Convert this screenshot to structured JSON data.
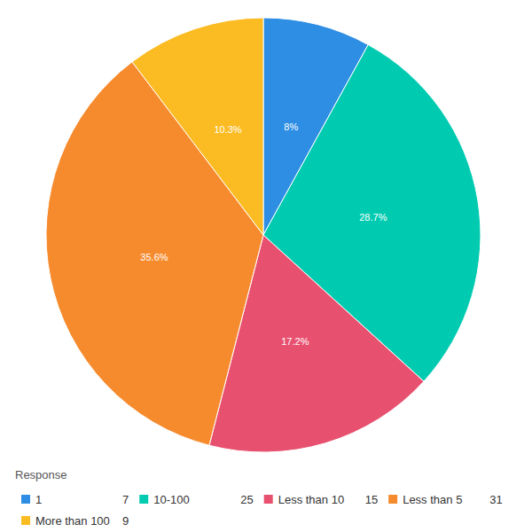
{
  "chart_data": {
    "type": "pie",
    "categories": [
      "1",
      "10-100",
      "Less than 10",
      "Less than 5",
      "More than 100"
    ],
    "values": [
      8,
      28.7,
      17.2,
      35.6,
      10.3
    ],
    "value_labels": [
      "8%",
      "28.7%",
      "17.2%",
      "35.6%",
      "10.3%"
    ],
    "counts": [
      7,
      25,
      15,
      31,
      9
    ],
    "colors": [
      "#2d8ee3",
      "#00cbb1",
      "#e8506f",
      "#f68b2e",
      "#fbbb22"
    ],
    "legend_title": "Response",
    "legend": "bottom",
    "data_labels": true
  }
}
